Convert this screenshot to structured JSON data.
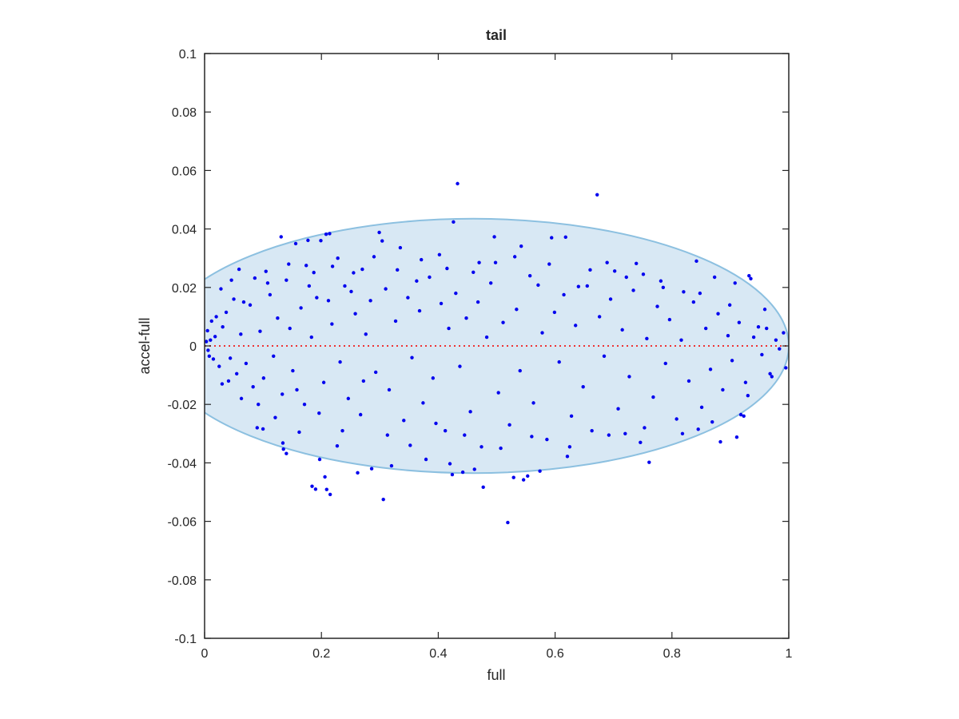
{
  "chart_data": {
    "type": "scatter",
    "title": "tail",
    "xlabel": "full",
    "ylabel": "accel-full",
    "xlim": [
      0,
      1
    ],
    "ylim": [
      -0.1,
      0.1
    ],
    "xticks": [
      0,
      0.2,
      0.4,
      0.6,
      0.8,
      1
    ],
    "xtick_labels": [
      "0",
      "0.2",
      "0.4",
      "0.6",
      "0.8",
      "1"
    ],
    "yticks": [
      -0.1,
      -0.08,
      -0.06,
      -0.04,
      -0.02,
      0,
      0.02,
      0.04,
      0.06,
      0.08,
      0.1
    ],
    "ytick_labels": [
      "-0.1",
      "-0.08",
      "-0.06",
      "-0.04",
      "-0.02",
      "0",
      "0.02",
      "0.04",
      "0.06",
      "0.08",
      "0.1"
    ],
    "grid": false,
    "colors": {
      "points": "#0000ee",
      "ellipse_fill": "#d8e8f4",
      "ellipse_stroke": "#8cc0e0",
      "zero_line": "#ee3333",
      "axis": "#262626"
    },
    "ellipse": {
      "cx": 0.46,
      "cy": 0.0,
      "rx": 0.54,
      "ry": 0.0435
    },
    "reference_line": {
      "y": 0.0,
      "style": "dotted"
    },
    "points": [
      [
        0.433,
        0.0555
      ],
      [
        0.672,
        0.0517
      ],
      [
        0.426,
        0.0424
      ],
      [
        0.131,
        0.0373
      ],
      [
        0.208,
        0.0382
      ],
      [
        0.214,
        0.0384
      ],
      [
        0.199,
        0.036
      ],
      [
        0.156,
        0.035
      ],
      [
        0.177,
        0.0361
      ],
      [
        0.299,
        0.0388
      ],
      [
        0.496,
        0.0373
      ],
      [
        0.304,
        0.0359
      ],
      [
        0.335,
        0.0336
      ],
      [
        0.542,
        0.0341
      ],
      [
        0.594,
        0.037
      ],
      [
        0.618,
        0.0372
      ],
      [
        0.842,
        0.029
      ],
      [
        0.689,
        0.0285
      ],
      [
        0.739,
        0.0282
      ],
      [
        0.932,
        0.024
      ],
      [
        0.935,
        0.023
      ],
      [
        0.908,
        0.0215
      ],
      [
        0.402,
        0.0312
      ],
      [
        0.219,
        0.0272
      ],
      [
        0.27,
        0.0262
      ],
      [
        0.228,
        0.03
      ],
      [
        0.105,
        0.0255
      ],
      [
        0.059,
        0.0262
      ],
      [
        0.086,
        0.0232
      ],
      [
        0.14,
        0.0225
      ],
      [
        0.174,
        0.0275
      ],
      [
        0.187,
        0.0251
      ],
      [
        0.251,
        0.0186
      ],
      [
        0.363,
        0.0222
      ],
      [
        0.46,
        0.0252
      ],
      [
        0.498,
        0.0285
      ],
      [
        0.571,
        0.0208
      ],
      [
        0.64,
        0.0203
      ],
      [
        0.702,
        0.0256
      ],
      [
        0.751,
        0.0245
      ],
      [
        0.781,
        0.0222
      ],
      [
        0.82,
        0.0185
      ],
      [
        0.873,
        0.0235
      ],
      [
        0.959,
        0.0125
      ],
      [
        0.948,
        0.0065
      ],
      [
        0.978,
        0.002
      ],
      [
        0.991,
        0.0045
      ],
      [
        0.995,
        -0.0075
      ],
      [
        0.968,
        -0.0095
      ],
      [
        0.971,
        -0.0105
      ],
      [
        0.918,
        -0.0235
      ],
      [
        0.923,
        -0.024
      ],
      [
        0.911,
        -0.0312
      ],
      [
        0.883,
        -0.0328
      ],
      [
        0.845,
        -0.0285
      ],
      [
        0.761,
        -0.0398
      ],
      [
        0.72,
        -0.03
      ],
      [
        0.621,
        -0.0378
      ],
      [
        0.574,
        -0.0428
      ],
      [
        0.553,
        -0.0445
      ],
      [
        0.546,
        -0.0458
      ],
      [
        0.529,
        -0.045
      ],
      [
        0.519,
        -0.0604
      ],
      [
        0.477,
        -0.0483
      ],
      [
        0.462,
        -0.0422
      ],
      [
        0.42,
        -0.0403
      ],
      [
        0.424,
        -0.044
      ],
      [
        0.442,
        -0.0432
      ],
      [
        0.379,
        -0.0388
      ],
      [
        0.306,
        -0.0525
      ],
      [
        0.32,
        -0.041
      ],
      [
        0.286,
        -0.042
      ],
      [
        0.262,
        -0.0434
      ],
      [
        0.215,
        -0.0508
      ],
      [
        0.209,
        -0.0491
      ],
      [
        0.19,
        -0.049
      ],
      [
        0.184,
        -0.048
      ],
      [
        0.206,
        -0.0448
      ],
      [
        0.197,
        -0.0388
      ],
      [
        0.134,
        -0.0332
      ],
      [
        0.135,
        -0.0353
      ],
      [
        0.14,
        -0.0368
      ],
      [
        0.09,
        -0.028
      ],
      [
        0.1,
        -0.0284
      ],
      [
        0.162,
        -0.0295
      ],
      [
        0.227,
        -0.0342
      ],
      [
        0.063,
        -0.018
      ],
      [
        0.03,
        -0.013
      ],
      [
        0.041,
        -0.012
      ],
      [
        0.055,
        -0.0095
      ],
      [
        0.01,
        0.002
      ],
      [
        0.005,
        0.0052
      ],
      [
        0.008,
        -0.0035
      ],
      [
        0.015,
        -0.0045
      ],
      [
        0.012,
        0.0085
      ],
      [
        0.02,
        0.01
      ],
      [
        0.003,
        0.0015
      ],
      [
        0.006,
        -0.0015
      ],
      [
        0.018,
        0.0032
      ],
      [
        0.025,
        -0.007
      ],
      [
        0.031,
        0.0065
      ],
      [
        0.037,
        0.0115
      ],
      [
        0.044,
        -0.0042
      ],
      [
        0.05,
        0.016
      ],
      [
        0.062,
        0.004
      ],
      [
        0.071,
        -0.006
      ],
      [
        0.078,
        0.014
      ],
      [
        0.083,
        -0.014
      ],
      [
        0.095,
        0.005
      ],
      [
        0.101,
        -0.011
      ],
      [
        0.112,
        0.0175
      ],
      [
        0.118,
        -0.0035
      ],
      [
        0.125,
        0.0095
      ],
      [
        0.133,
        -0.0165
      ],
      [
        0.146,
        0.006
      ],
      [
        0.151,
        -0.0085
      ],
      [
        0.165,
        0.013
      ],
      [
        0.171,
        -0.02
      ],
      [
        0.183,
        0.003
      ],
      [
        0.192,
        0.0165
      ],
      [
        0.204,
        -0.0125
      ],
      [
        0.218,
        0.0075
      ],
      [
        0.232,
        -0.0055
      ],
      [
        0.24,
        0.0205
      ],
      [
        0.246,
        -0.018
      ],
      [
        0.258,
        0.011
      ],
      [
        0.267,
        -0.0235
      ],
      [
        0.276,
        0.004
      ],
      [
        0.284,
        0.0155
      ],
      [
        0.293,
        -0.009
      ],
      [
        0.31,
        0.0195
      ],
      [
        0.316,
        -0.015
      ],
      [
        0.327,
        0.0085
      ],
      [
        0.341,
        -0.0255
      ],
      [
        0.348,
        0.0165
      ],
      [
        0.355,
        -0.004
      ],
      [
        0.368,
        0.012
      ],
      [
        0.374,
        -0.0195
      ],
      [
        0.385,
        0.0235
      ],
      [
        0.391,
        -0.011
      ],
      [
        0.405,
        0.0145
      ],
      [
        0.412,
        -0.029
      ],
      [
        0.418,
        0.006
      ],
      [
        0.43,
        0.018
      ],
      [
        0.437,
        -0.007
      ],
      [
        0.448,
        0.0095
      ],
      [
        0.455,
        -0.0225
      ],
      [
        0.468,
        0.015
      ],
      [
        0.474,
        -0.0345
      ],
      [
        0.483,
        0.003
      ],
      [
        0.49,
        0.0215
      ],
      [
        0.503,
        -0.016
      ],
      [
        0.511,
        0.008
      ],
      [
        0.522,
        -0.027
      ],
      [
        0.534,
        0.0125
      ],
      [
        0.54,
        -0.0085
      ],
      [
        0.557,
        0.024
      ],
      [
        0.563,
        -0.0195
      ],
      [
        0.578,
        0.0045
      ],
      [
        0.586,
        -0.032
      ],
      [
        0.599,
        0.0115
      ],
      [
        0.607,
        -0.0055
      ],
      [
        0.615,
        0.0175
      ],
      [
        0.628,
        -0.024
      ],
      [
        0.635,
        0.007
      ],
      [
        0.648,
        -0.014
      ],
      [
        0.655,
        0.0205
      ],
      [
        0.663,
        -0.029
      ],
      [
        0.676,
        0.01
      ],
      [
        0.684,
        -0.0035
      ],
      [
        0.695,
        0.016
      ],
      [
        0.708,
        -0.0215
      ],
      [
        0.715,
        0.0055
      ],
      [
        0.727,
        -0.0105
      ],
      [
        0.734,
        0.019
      ],
      [
        0.746,
        -0.033
      ],
      [
        0.757,
        0.0025
      ],
      [
        0.768,
        -0.0175
      ],
      [
        0.775,
        0.0135
      ],
      [
        0.789,
        -0.006
      ],
      [
        0.796,
        0.009
      ],
      [
        0.808,
        -0.025
      ],
      [
        0.816,
        0.002
      ],
      [
        0.829,
        -0.012
      ],
      [
        0.837,
        0.015
      ],
      [
        0.851,
        -0.021
      ],
      [
        0.858,
        0.006
      ],
      [
        0.866,
        -0.008
      ],
      [
        0.879,
        0.011
      ],
      [
        0.887,
        -0.015
      ],
      [
        0.896,
        0.0035
      ],
      [
        0.903,
        -0.005
      ],
      [
        0.915,
        0.008
      ],
      [
        0.926,
        -0.0125
      ],
      [
        0.94,
        0.003
      ],
      [
        0.954,
        -0.003
      ],
      [
        0.962,
        0.006
      ],
      [
        0.984,
        -0.001
      ],
      [
        0.028,
        0.0195
      ],
      [
        0.046,
        0.0225
      ],
      [
        0.067,
        0.015
      ],
      [
        0.092,
        -0.02
      ],
      [
        0.108,
        0.0215
      ],
      [
        0.121,
        -0.0245
      ],
      [
        0.144,
        0.028
      ],
      [
        0.158,
        -0.015
      ],
      [
        0.179,
        0.0205
      ],
      [
        0.196,
        -0.023
      ],
      [
        0.212,
        0.0155
      ],
      [
        0.236,
        -0.029
      ],
      [
        0.255,
        0.025
      ],
      [
        0.272,
        -0.012
      ],
      [
        0.29,
        0.0305
      ],
      [
        0.313,
        -0.0305
      ],
      [
        0.33,
        0.026
      ],
      [
        0.352,
        -0.034
      ],
      [
        0.371,
        0.0295
      ],
      [
        0.396,
        -0.0265
      ],
      [
        0.415,
        0.0265
      ],
      [
        0.445,
        -0.0305
      ],
      [
        0.47,
        0.0285
      ],
      [
        0.507,
        -0.035
      ],
      [
        0.531,
        0.0305
      ],
      [
        0.56,
        -0.031
      ],
      [
        0.59,
        0.028
      ],
      [
        0.625,
        -0.0345
      ],
      [
        0.66,
        0.026
      ],
      [
        0.692,
        -0.0305
      ],
      [
        0.722,
        0.0235
      ],
      [
        0.753,
        -0.028
      ],
      [
        0.785,
        0.02
      ],
      [
        0.818,
        -0.03
      ],
      [
        0.848,
        0.018
      ],
      [
        0.869,
        -0.026
      ],
      [
        0.899,
        0.014
      ],
      [
        0.93,
        -0.017
      ]
    ]
  }
}
